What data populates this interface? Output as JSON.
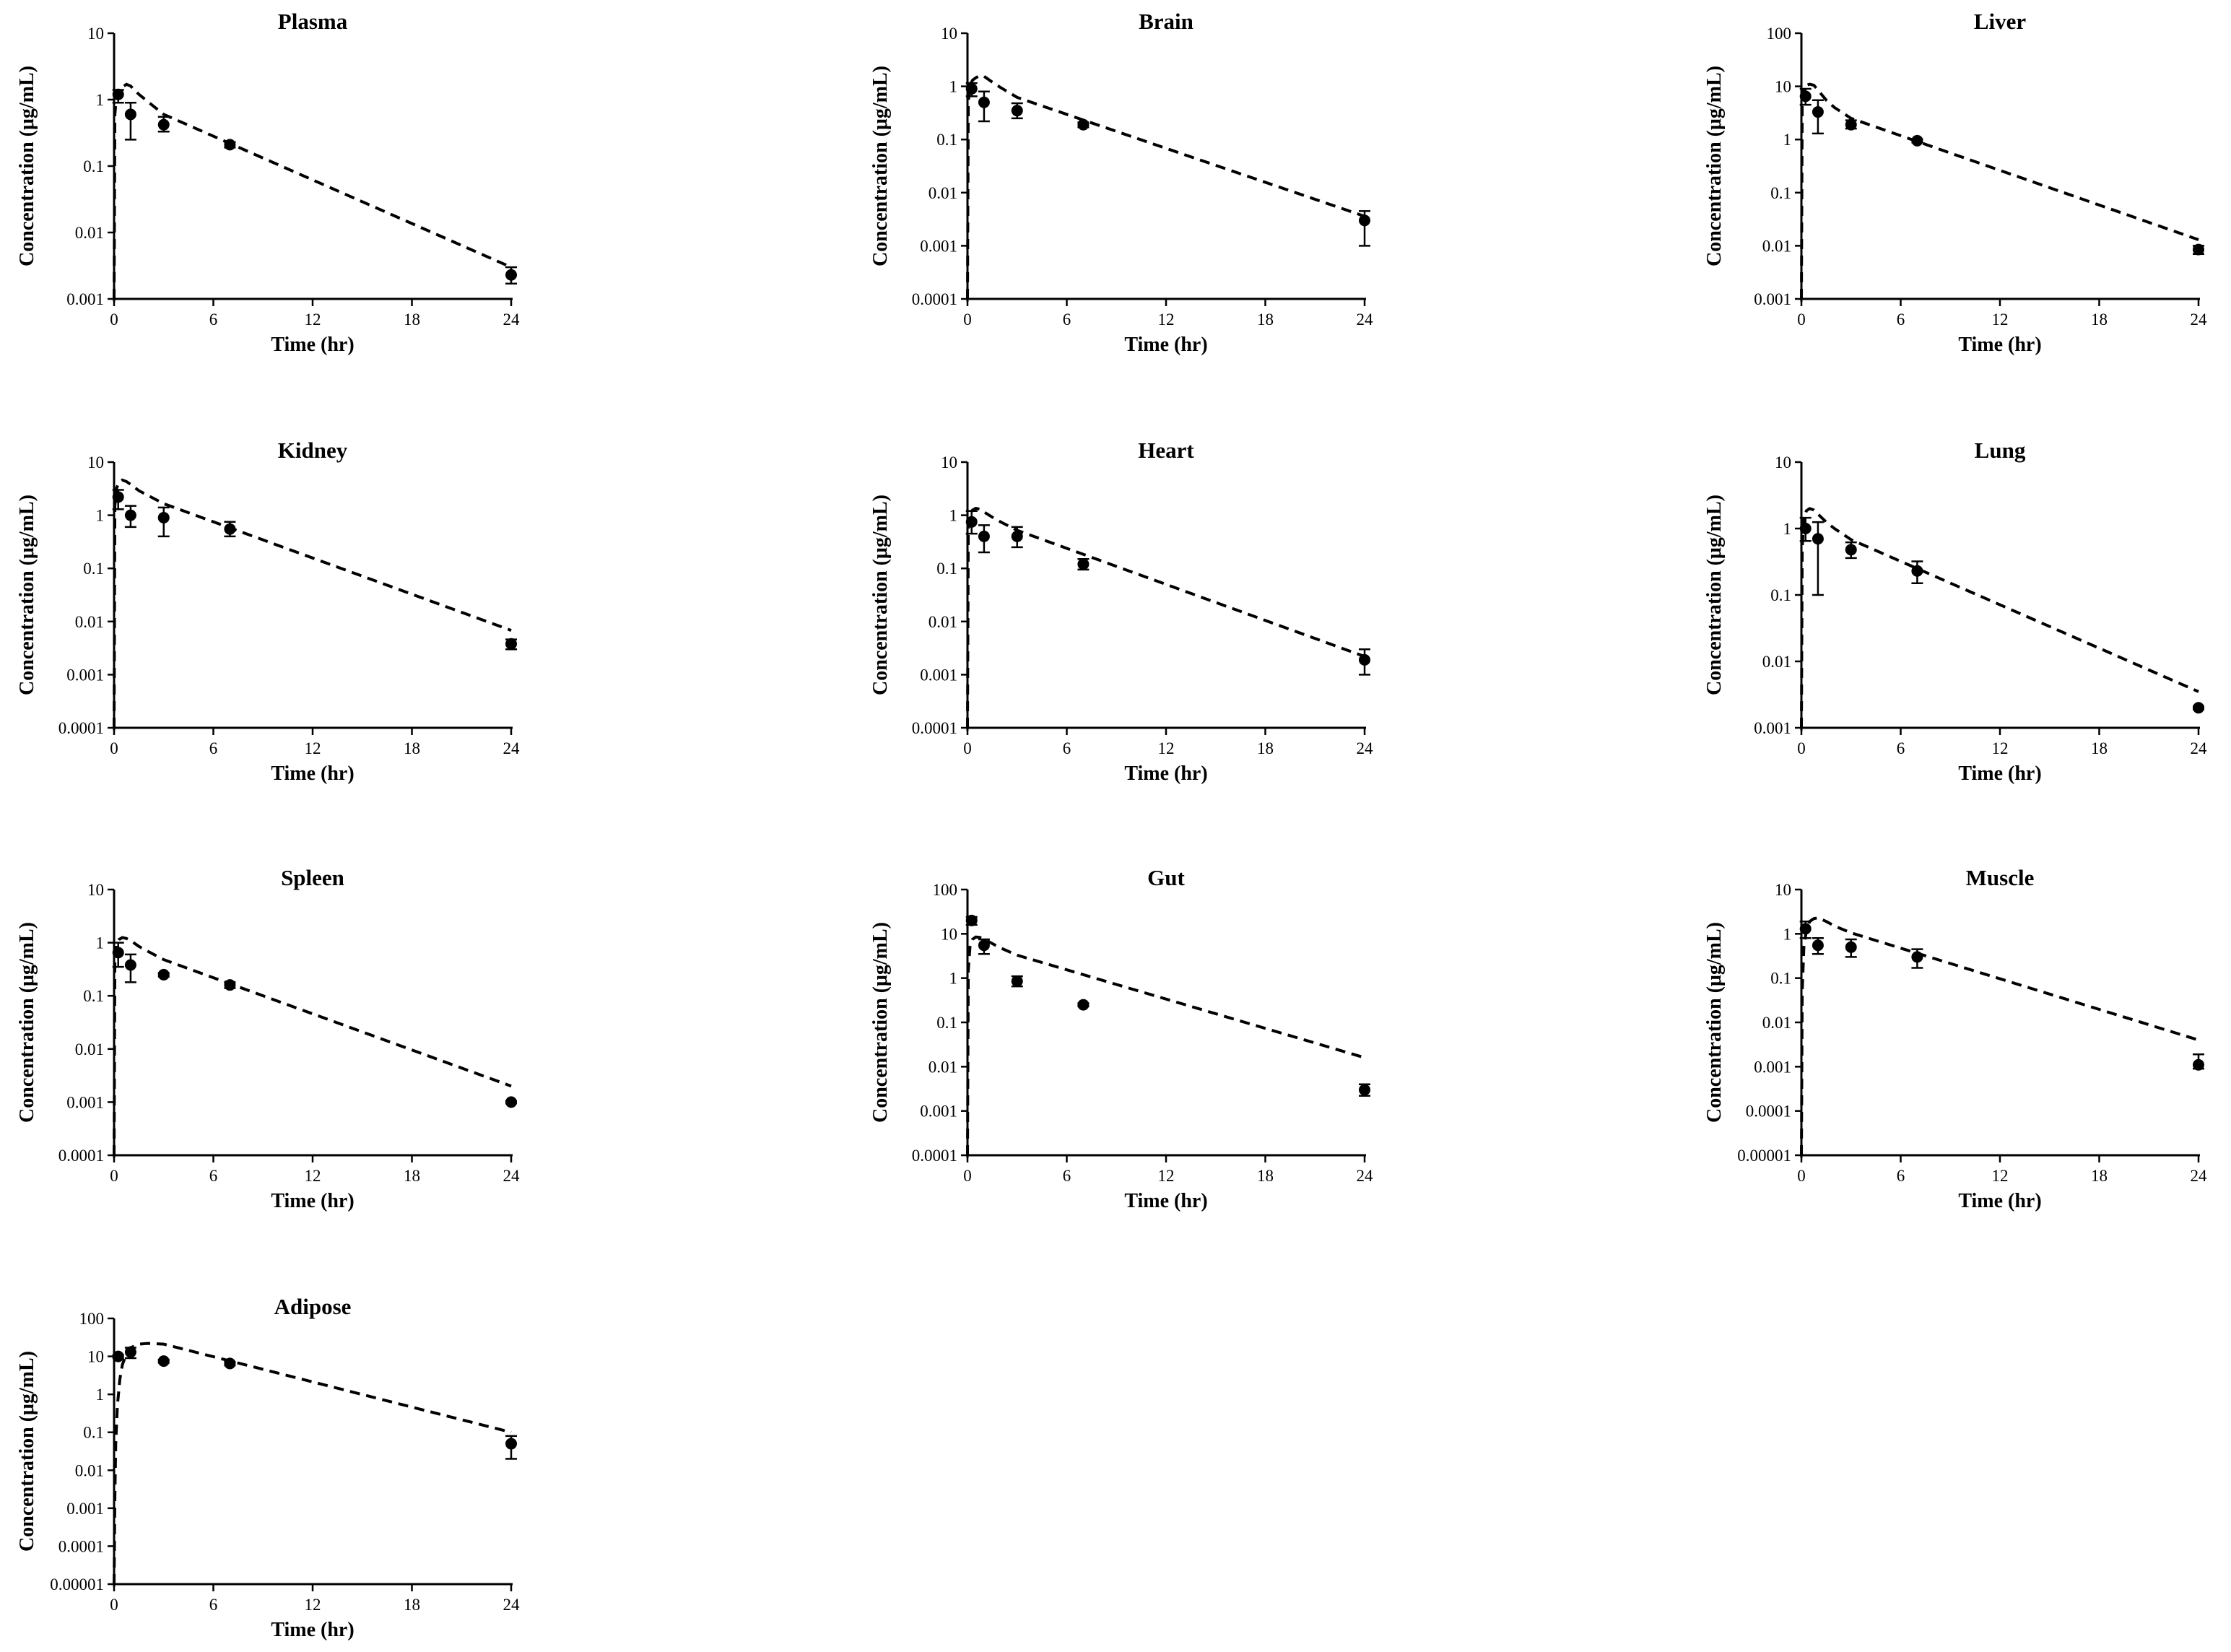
{
  "figure": {
    "ylabel": "Concentration (μg/mL)",
    "xlabel": "Time (hr)"
  },
  "chart_data": [
    {
      "type": "scatter",
      "title": "Plasma",
      "xlabel": "Time (hr)",
      "ylabel": "Concentration (μg/mL)",
      "xlim": [
        0,
        24
      ],
      "xticks": [
        0,
        6,
        12,
        18,
        24
      ],
      "ylim": [
        0.001,
        10
      ],
      "yscale": "log",
      "yticks": [
        {
          "v": 0.001,
          "label": "0.001"
        },
        {
          "v": 0.01,
          "label": "0.01"
        },
        {
          "v": 0.1,
          "label": "0.1"
        },
        {
          "v": 1,
          "label": "1"
        },
        {
          "v": 10,
          "label": "10"
        }
      ],
      "observed": [
        {
          "x": 0.25,
          "y": 1.2,
          "lo": 0.9,
          "hi": 1.4
        },
        {
          "x": 1,
          "y": 0.6,
          "lo": 0.25,
          "hi": 0.9
        },
        {
          "x": 3,
          "y": 0.42,
          "lo": 0.33,
          "hi": 0.55
        },
        {
          "x": 7,
          "y": 0.21,
          "lo": 0.19,
          "hi": 0.23
        },
        {
          "x": 24,
          "y": 0.0023,
          "lo": 0.0017,
          "hi": 0.003
        }
      ],
      "predicted": [
        [
          0,
          0.001
        ],
        [
          0.05,
          0.6
        ],
        [
          0.15,
          1.15
        ],
        [
          0.3,
          1.4
        ],
        [
          0.5,
          1.55
        ],
        [
          0.75,
          1.7
        ],
        [
          1,
          1.6
        ],
        [
          1.5,
          1.2
        ],
        [
          2,
          0.95
        ],
        [
          3,
          0.6
        ],
        [
          24,
          0.003
        ]
      ]
    },
    {
      "type": "scatter",
      "title": "Brain",
      "xlabel": "Time (hr)",
      "ylabel": "Concentration (μg/mL)",
      "xlim": [
        0,
        24
      ],
      "xticks": [
        0,
        6,
        12,
        18,
        24
      ],
      "ylim": [
        0.0001,
        10
      ],
      "yscale": "log",
      "yticks": [
        {
          "v": 0.0001,
          "label": "0.0001"
        },
        {
          "v": 0.001,
          "label": "0.001"
        },
        {
          "v": 0.01,
          "label": "0.01"
        },
        {
          "v": 0.1,
          "label": "0.1"
        },
        {
          "v": 1,
          "label": "1"
        },
        {
          "v": 10,
          "label": "10"
        }
      ],
      "observed": [
        {
          "x": 0.25,
          "y": 0.9,
          "lo": 0.65,
          "hi": 1.15
        },
        {
          "x": 1,
          "y": 0.5,
          "lo": 0.22,
          "hi": 0.8
        },
        {
          "x": 3,
          "y": 0.35,
          "lo": 0.25,
          "hi": 0.48
        },
        {
          "x": 7,
          "y": 0.19,
          "lo": 0.17,
          "hi": 0.21
        },
        {
          "x": 24,
          "y": 0.003,
          "lo": 0.001,
          "hi": 0.0045
        }
      ],
      "predicted": [
        [
          0,
          0.0001
        ],
        [
          0.05,
          0.5
        ],
        [
          0.15,
          1.05
        ],
        [
          0.3,
          1.3
        ],
        [
          0.5,
          1.45
        ],
        [
          0.75,
          1.6
        ],
        [
          1,
          1.55
        ],
        [
          1.5,
          1.2
        ],
        [
          2,
          0.95
        ],
        [
          3,
          0.62
        ],
        [
          24,
          0.0036
        ]
      ]
    },
    {
      "type": "scatter",
      "title": "Liver",
      "xlabel": "Time (hr)",
      "ylabel": "Concentration (μg/mL)",
      "xlim": [
        0,
        24
      ],
      "xticks": [
        0,
        6,
        12,
        18,
        24
      ],
      "ylim": [
        0.001,
        100
      ],
      "yscale": "log",
      "yticks": [
        {
          "v": 0.001,
          "label": "0.001"
        },
        {
          "v": 0.01,
          "label": "0.01"
        },
        {
          "v": 0.1,
          "label": "0.1"
        },
        {
          "v": 1,
          "label": "1"
        },
        {
          "v": 10,
          "label": "10"
        },
        {
          "v": 100,
          "label": "100"
        }
      ],
      "observed": [
        {
          "x": 0.25,
          "y": 6.5,
          "lo": 4.5,
          "hi": 9
        },
        {
          "x": 1,
          "y": 3.3,
          "lo": 1.3,
          "hi": 5.5
        },
        {
          "x": 3,
          "y": 1.9,
          "lo": 1.6,
          "hi": 2.3
        },
        {
          "x": 7,
          "y": 0.95,
          "lo": 0.88,
          "hi": 1.02
        },
        {
          "x": 24,
          "y": 0.0085,
          "lo": 0.007,
          "hi": 0.01
        }
      ],
      "predicted": [
        [
          0,
          0.001
        ],
        [
          0.05,
          5
        ],
        [
          0.15,
          9
        ],
        [
          0.3,
          10.5
        ],
        [
          0.5,
          11
        ],
        [
          0.75,
          10.5
        ],
        [
          1,
          8.5
        ],
        [
          1.5,
          5.5
        ],
        [
          2,
          4
        ],
        [
          3,
          2.5
        ],
        [
          24,
          0.013
        ]
      ]
    },
    {
      "type": "scatter",
      "title": "Kidney",
      "xlabel": "Time (hr)",
      "ylabel": "Concentration (μg/mL)",
      "xlim": [
        0,
        24
      ],
      "xticks": [
        0,
        6,
        12,
        18,
        24
      ],
      "ylim": [
        0.0001,
        10
      ],
      "yscale": "log",
      "yticks": [
        {
          "v": 0.0001,
          "label": "0.0001"
        },
        {
          "v": 0.001,
          "label": "0.001"
        },
        {
          "v": 0.01,
          "label": "0.01"
        },
        {
          "v": 0.1,
          "label": "0.1"
        },
        {
          "v": 1,
          "label": "1"
        },
        {
          "v": 10,
          "label": "10"
        }
      ],
      "observed": [
        {
          "x": 0.25,
          "y": 2.2,
          "lo": 1.3,
          "hi": 3
        },
        {
          "x": 1,
          "y": 1.0,
          "lo": 0.6,
          "hi": 1.5
        },
        {
          "x": 3,
          "y": 0.9,
          "lo": 0.4,
          "hi": 1.4
        },
        {
          "x": 7,
          "y": 0.55,
          "lo": 0.4,
          "hi": 0.75
        },
        {
          "x": 24,
          "y": 0.0038,
          "lo": 0.003,
          "hi": 0.0046
        }
      ],
      "predicted": [
        [
          0,
          0.0001
        ],
        [
          0.05,
          1.5
        ],
        [
          0.15,
          3.2
        ],
        [
          0.3,
          4.2
        ],
        [
          0.5,
          4.6
        ],
        [
          0.75,
          4.3
        ],
        [
          1,
          3.8
        ],
        [
          1.5,
          2.9
        ],
        [
          2,
          2.4
        ],
        [
          3,
          1.65
        ],
        [
          24,
          0.0068
        ]
      ]
    },
    {
      "type": "scatter",
      "title": "Heart",
      "xlabel": "Time (hr)",
      "ylabel": "Concentration (μg/mL)",
      "xlim": [
        0,
        24
      ],
      "xticks": [
        0,
        6,
        12,
        18,
        24
      ],
      "ylim": [
        0.0001,
        10
      ],
      "yscale": "log",
      "yticks": [
        {
          "v": 0.0001,
          "label": "0.0001"
        },
        {
          "v": 0.001,
          "label": "0.001"
        },
        {
          "v": 0.01,
          "label": "0.01"
        },
        {
          "v": 0.1,
          "label": "0.1"
        },
        {
          "v": 1,
          "label": "1"
        },
        {
          "v": 10,
          "label": "10"
        }
      ],
      "observed": [
        {
          "x": 0.25,
          "y": 0.75,
          "lo": 0.45,
          "hi": 1.2
        },
        {
          "x": 1,
          "y": 0.4,
          "lo": 0.2,
          "hi": 0.65
        },
        {
          "x": 3,
          "y": 0.4,
          "lo": 0.25,
          "hi": 0.6
        },
        {
          "x": 7,
          "y": 0.12,
          "lo": 0.095,
          "hi": 0.15
        },
        {
          "x": 24,
          "y": 0.0019,
          "lo": 0.001,
          "hi": 0.003
        }
      ],
      "predicted": [
        [
          0,
          0.0001
        ],
        [
          0.05,
          0.55
        ],
        [
          0.15,
          1.05
        ],
        [
          0.3,
          1.25
        ],
        [
          0.5,
          1.35
        ],
        [
          0.75,
          1.3
        ],
        [
          1,
          1.15
        ],
        [
          1.5,
          0.92
        ],
        [
          2,
          0.75
        ],
        [
          3,
          0.52
        ],
        [
          24,
          0.0022
        ]
      ]
    },
    {
      "type": "scatter",
      "title": "Lung",
      "xlabel": "Time (hr)",
      "ylabel": "Concentration (μg/mL)",
      "xlim": [
        0,
        24
      ],
      "xticks": [
        0,
        6,
        12,
        18,
        24
      ],
      "ylim": [
        0.001,
        10
      ],
      "yscale": "log",
      "yticks": [
        {
          "v": 0.001,
          "label": "0.001"
        },
        {
          "v": 0.01,
          "label": "0.01"
        },
        {
          "v": 0.1,
          "label": "0.1"
        },
        {
          "v": 1,
          "label": "1"
        },
        {
          "v": 10,
          "label": "10"
        }
      ],
      "observed": [
        {
          "x": 0.25,
          "y": 1.0,
          "lo": 0.65,
          "hi": 1.45
        },
        {
          "x": 1,
          "y": 0.7,
          "lo": 0.1,
          "hi": 1.25
        },
        {
          "x": 3,
          "y": 0.48,
          "lo": 0.36,
          "hi": 0.62
        },
        {
          "x": 7,
          "y": 0.23,
          "lo": 0.15,
          "hi": 0.32
        },
        {
          "x": 24,
          "y": 0.002,
          "lo": 0.0019,
          "hi": 0.0021
        }
      ],
      "predicted": [
        [
          0,
          0.001
        ],
        [
          0.05,
          0.5
        ],
        [
          0.15,
          1.4
        ],
        [
          0.3,
          1.85
        ],
        [
          0.5,
          2.0
        ],
        [
          0.75,
          1.9
        ],
        [
          1,
          1.65
        ],
        [
          1.5,
          1.25
        ],
        [
          2,
          1.0
        ],
        [
          3,
          0.68
        ],
        [
          24,
          0.0035
        ]
      ]
    },
    {
      "type": "scatter",
      "title": "Spleen",
      "xlabel": "Time (hr)",
      "ylabel": "Concentration (μg/mL)",
      "xlim": [
        0,
        24
      ],
      "xticks": [
        0,
        6,
        12,
        18,
        24
      ],
      "ylim": [
        0.0001,
        10
      ],
      "yscale": "log",
      "yticks": [
        {
          "v": 0.0001,
          "label": "0.0001"
        },
        {
          "v": 0.001,
          "label": "0.001"
        },
        {
          "v": 0.01,
          "label": "0.01"
        },
        {
          "v": 0.1,
          "label": "0.1"
        },
        {
          "v": 1,
          "label": "1"
        },
        {
          "v": 10,
          "label": "10"
        }
      ],
      "observed": [
        {
          "x": 0.25,
          "y": 0.65,
          "lo": 0.35,
          "hi": 1.0
        },
        {
          "x": 1,
          "y": 0.38,
          "lo": 0.18,
          "hi": 0.6
        },
        {
          "x": 3,
          "y": 0.25,
          "lo": 0.23,
          "hi": 0.27
        },
        {
          "x": 7,
          "y": 0.16,
          "lo": 0.14,
          "hi": 0.18
        },
        {
          "x": 24,
          "y": 0.001,
          "lo": 0.00095,
          "hi": 0.00105
        }
      ],
      "predicted": [
        [
          0,
          0.0001
        ],
        [
          0.05,
          0.45
        ],
        [
          0.15,
          0.95
        ],
        [
          0.3,
          1.15
        ],
        [
          0.5,
          1.25
        ],
        [
          0.75,
          1.2
        ],
        [
          1,
          1.1
        ],
        [
          1.5,
          0.85
        ],
        [
          2,
          0.7
        ],
        [
          3,
          0.48
        ],
        [
          24,
          0.002
        ]
      ]
    },
    {
      "type": "scatter",
      "title": "Gut",
      "xlabel": "Time (hr)",
      "ylabel": "Concentration (μg/mL)",
      "xlim": [
        0,
        24
      ],
      "xticks": [
        0,
        6,
        12,
        18,
        24
      ],
      "ylim": [
        0.0001,
        100
      ],
      "yscale": "log",
      "yticks": [
        {
          "v": 0.0001,
          "label": "0.0001"
        },
        {
          "v": 0.001,
          "label": "0.001"
        },
        {
          "v": 0.01,
          "label": "0.01"
        },
        {
          "v": 0.1,
          "label": "0.1"
        },
        {
          "v": 1,
          "label": "1"
        },
        {
          "v": 10,
          "label": "10"
        },
        {
          "v": 100,
          "label": "100"
        }
      ],
      "observed": [
        {
          "x": 0.25,
          "y": 20,
          "lo": 16,
          "hi": 24
        },
        {
          "x": 1,
          "y": 5.5,
          "lo": 3.5,
          "hi": 7.5
        },
        {
          "x": 3,
          "y": 0.85,
          "lo": 0.65,
          "hi": 1.1
        },
        {
          "x": 7,
          "y": 0.25,
          "lo": 0.23,
          "hi": 0.27
        },
        {
          "x": 24,
          "y": 0.003,
          "lo": 0.0022,
          "hi": 0.004
        }
      ],
      "predicted": [
        [
          0,
          0.0001
        ],
        [
          0.05,
          1.5
        ],
        [
          0.15,
          5
        ],
        [
          0.3,
          7.5
        ],
        [
          0.5,
          8.5
        ],
        [
          0.75,
          8.3
        ],
        [
          1,
          7.6
        ],
        [
          1.5,
          6
        ],
        [
          2,
          4.8
        ],
        [
          3,
          3.3
        ],
        [
          24,
          0.016
        ]
      ]
    },
    {
      "type": "scatter",
      "title": "Muscle",
      "xlabel": "Time (hr)",
      "ylabel": "Concentration (μg/mL)",
      "xlim": [
        0,
        24
      ],
      "xticks": [
        0,
        6,
        12,
        18,
        24
      ],
      "ylim": [
        1e-05,
        10
      ],
      "yscale": "log",
      "yticks": [
        {
          "v": 1e-05,
          "label": "0.00001"
        },
        {
          "v": 0.0001,
          "label": "0.0001"
        },
        {
          "v": 0.001,
          "label": "0.001"
        },
        {
          "v": 0.01,
          "label": "0.01"
        },
        {
          "v": 0.1,
          "label": "0.1"
        },
        {
          "v": 1,
          "label": "1"
        },
        {
          "v": 10,
          "label": "10"
        }
      ],
      "observed": [
        {
          "x": 0.25,
          "y": 1.3,
          "lo": 0.8,
          "hi": 1.9
        },
        {
          "x": 1,
          "y": 0.55,
          "lo": 0.35,
          "hi": 0.8
        },
        {
          "x": 3,
          "y": 0.5,
          "lo": 0.3,
          "hi": 0.75
        },
        {
          "x": 7,
          "y": 0.3,
          "lo": 0.17,
          "hi": 0.45
        },
        {
          "x": 24,
          "y": 0.0011,
          "lo": 0.0009,
          "hi": 0.0019
        }
      ],
      "predicted": [
        [
          0,
          1e-05
        ],
        [
          0.05,
          0.05
        ],
        [
          0.15,
          0.5
        ],
        [
          0.3,
          1.2
        ],
        [
          0.5,
          1.9
        ],
        [
          0.75,
          2.2
        ],
        [
          1,
          2.3
        ],
        [
          1.5,
          1.9
        ],
        [
          2,
          1.5
        ],
        [
          3,
          1.05
        ],
        [
          24,
          0.004
        ]
      ]
    },
    {
      "type": "scatter",
      "title": "Adipose",
      "xlabel": "Time (hr)",
      "ylabel": "Concentration (μg/mL)",
      "xlim": [
        0,
        24
      ],
      "xticks": [
        0,
        6,
        12,
        18,
        24
      ],
      "ylim": [
        1e-05,
        100
      ],
      "yscale": "log",
      "yticks": [
        {
          "v": 1e-05,
          "label": "0.00001"
        },
        {
          "v": 0.0001,
          "label": "0.0001"
        },
        {
          "v": 0.001,
          "label": "0.001"
        },
        {
          "v": 0.01,
          "label": "0.01"
        },
        {
          "v": 0.1,
          "label": "0.1"
        },
        {
          "v": 1,
          "label": "1"
        },
        {
          "v": 10,
          "label": "10"
        },
        {
          "v": 100,
          "label": "100"
        }
      ],
      "observed": [
        {
          "x": 0.25,
          "y": 10,
          "lo": 9,
          "hi": 11
        },
        {
          "x": 1,
          "y": 13,
          "lo": 9,
          "hi": 17
        },
        {
          "x": 3,
          "y": 7.5,
          "lo": 6.8,
          "hi": 8.2
        },
        {
          "x": 7,
          "y": 6.5,
          "lo": 5.8,
          "hi": 7.2
        },
        {
          "x": 24,
          "y": 0.05,
          "lo": 0.02,
          "hi": 0.08
        }
      ],
      "predicted": [
        [
          0,
          1e-05
        ],
        [
          0.05,
          0.002
        ],
        [
          0.1,
          0.05
        ],
        [
          0.2,
          0.5
        ],
        [
          0.35,
          2.5
        ],
        [
          0.5,
          6
        ],
        [
          0.75,
          12
        ],
        [
          1,
          17
        ],
        [
          1.5,
          21
        ],
        [
          2,
          22
        ],
        [
          3,
          21
        ],
        [
          24,
          0.1
        ]
      ]
    }
  ]
}
